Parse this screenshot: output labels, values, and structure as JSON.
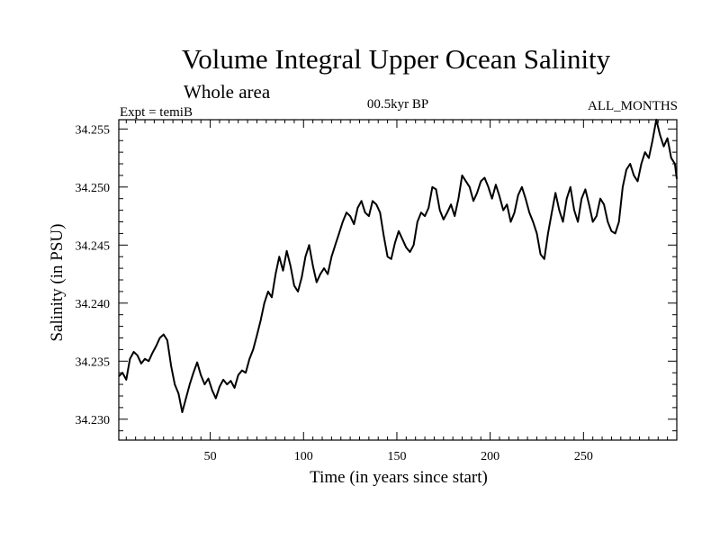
{
  "chart_data": {
    "type": "line",
    "title": "Volume Integral Upper Ocean Salinity",
    "subtitle": "Whole area",
    "experiment_label": "Expt = temiB",
    "period_label": "00.5kyr BP",
    "months_label": "ALL_MONTHS",
    "xlabel": "Time (in years since start)",
    "ylabel": "Salinity (in PSU)",
    "xlim": [
      1,
      300
    ],
    "ylim": [
      34.2282,
      34.2558
    ],
    "xticks": [
      50,
      100,
      150,
      200,
      250
    ],
    "xtick_labels": [
      "50",
      "100",
      "150",
      "200",
      "250"
    ],
    "yticks": [
      34.23,
      34.235,
      34.24,
      34.245,
      34.25,
      34.255
    ],
    "ytick_labels": [
      "34.230",
      "34.235",
      "34.240",
      "34.245",
      "34.250",
      "34.255"
    ],
    "grid": false,
    "series": [
      {
        "name": "Salinity",
        "color": "#000000",
        "x": [
          1,
          3,
          5,
          7,
          9,
          11,
          13,
          15,
          17,
          19,
          21,
          23,
          25,
          27,
          29,
          31,
          33,
          35,
          37,
          39,
          41,
          43,
          45,
          47,
          49,
          51,
          53,
          55,
          57,
          59,
          61,
          63,
          65,
          67,
          69,
          71,
          73,
          75,
          77,
          79,
          81,
          83,
          85,
          87,
          89,
          91,
          93,
          95,
          97,
          99,
          101,
          103,
          105,
          107,
          109,
          111,
          113,
          115,
          117,
          119,
          121,
          123,
          125,
          127,
          129,
          131,
          133,
          135,
          137,
          139,
          141,
          143,
          145,
          147,
          149,
          151,
          153,
          155,
          157,
          159,
          161,
          163,
          165,
          167,
          169,
          171,
          173,
          175,
          177,
          179,
          181,
          183,
          185,
          187,
          189,
          191,
          193,
          195,
          197,
          199,
          201,
          203,
          205,
          207,
          209,
          211,
          213,
          215,
          217,
          219,
          221,
          223,
          225,
          227,
          229,
          231,
          233,
          235,
          237,
          239,
          241,
          243,
          245,
          247,
          249,
          251,
          253,
          255,
          257,
          259,
          261,
          263,
          265,
          267,
          269,
          271,
          273,
          275,
          277,
          279,
          281,
          283,
          285,
          287,
          289,
          291,
          293,
          295,
          297,
          299,
          300
        ],
        "values": [
          34.2337,
          34.234,
          34.2334,
          34.2352,
          34.2358,
          34.2355,
          34.2348,
          34.2352,
          34.235,
          34.2357,
          34.2363,
          34.237,
          34.2373,
          34.2368,
          34.2346,
          34.233,
          34.2322,
          34.2306,
          34.2318,
          34.233,
          34.234,
          34.2349,
          34.2338,
          34.233,
          34.2335,
          34.2325,
          34.2318,
          34.2328,
          34.2334,
          34.233,
          34.2333,
          34.2327,
          34.2338,
          34.2342,
          34.234,
          34.2352,
          34.236,
          34.2372,
          34.2385,
          34.24,
          34.241,
          34.2405,
          34.2425,
          34.244,
          34.2428,
          34.2445,
          34.2432,
          34.2415,
          34.241,
          34.2422,
          34.244,
          34.245,
          34.2432,
          34.2418,
          34.2425,
          34.243,
          34.2425,
          34.244,
          34.245,
          34.246,
          34.247,
          34.2478,
          34.2475,
          34.2468,
          34.2482,
          34.2488,
          34.2478,
          34.2475,
          34.2488,
          34.2485,
          34.2478,
          34.2458,
          34.244,
          34.2438,
          34.2452,
          34.2462,
          34.2455,
          34.2448,
          34.2444,
          34.245,
          34.247,
          34.2478,
          34.2475,
          34.2482,
          34.25,
          34.2498,
          34.248,
          34.2472,
          34.2478,
          34.2485,
          34.2475,
          34.249,
          34.251,
          34.2505,
          34.25,
          34.2488,
          34.2495,
          34.2505,
          34.2508,
          34.25,
          34.249,
          34.2502,
          34.2492,
          34.248,
          34.2485,
          34.247,
          34.2478,
          34.2493,
          34.25,
          34.249,
          34.2478,
          34.247,
          34.246,
          34.2442,
          34.2438,
          34.246,
          34.2478,
          34.2495,
          34.248,
          34.247,
          34.249,
          34.25,
          34.248,
          34.247,
          34.249,
          34.2498,
          34.2485,
          34.247,
          34.2475,
          34.249,
          34.2485,
          34.247,
          34.2462,
          34.246,
          34.247,
          34.25,
          34.2515,
          34.252,
          34.251,
          34.2505,
          34.252,
          34.253,
          34.2525,
          34.254,
          34.2558,
          34.2545,
          34.2535,
          34.2542,
          34.2525,
          34.252,
          34.2507
        ]
      }
    ]
  }
}
